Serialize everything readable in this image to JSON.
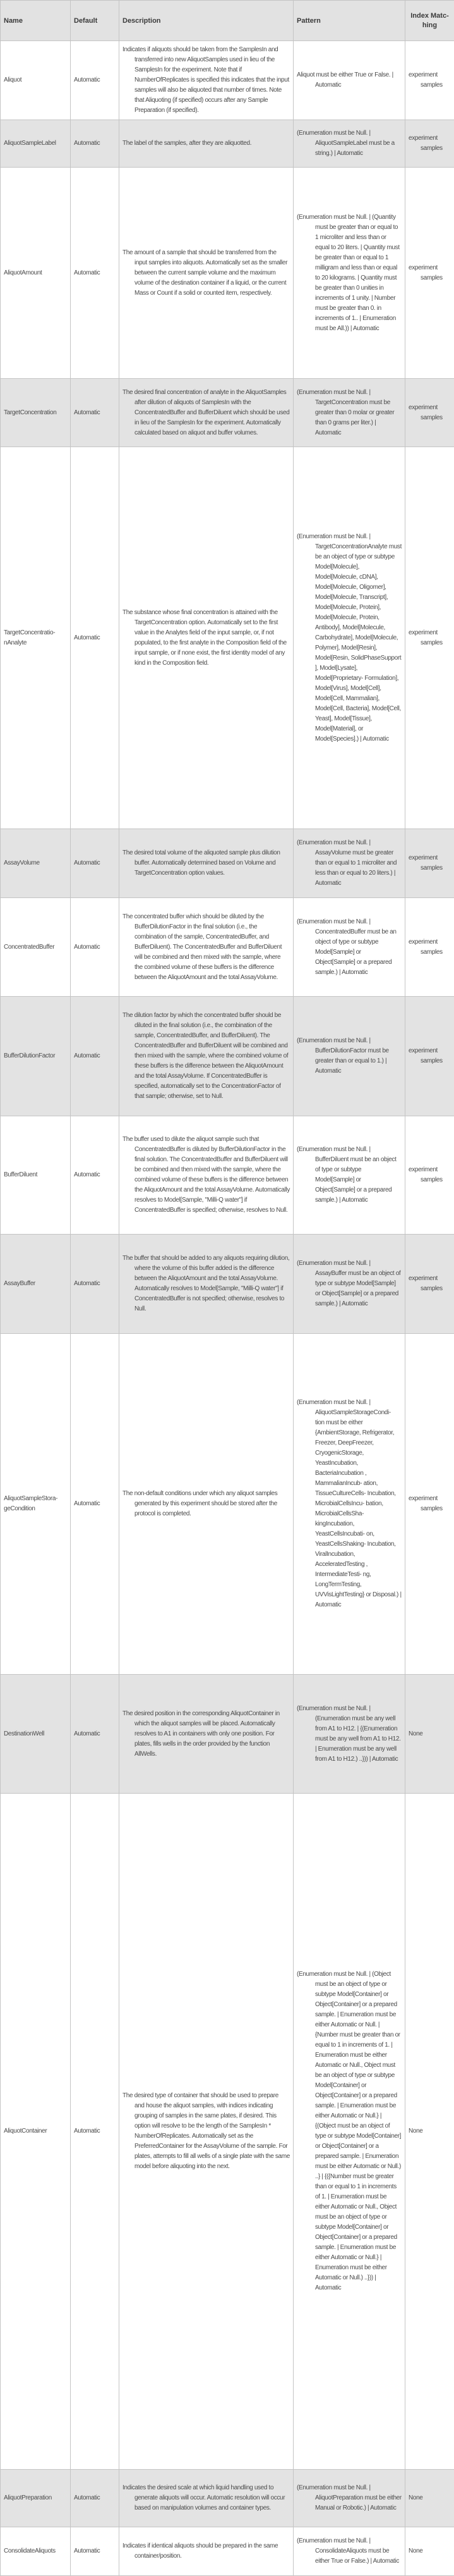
{
  "header": {
    "name": "Name",
    "default": "Default",
    "description": "Description",
    "pattern": "Pattern",
    "index_matching": "Index Matc- hing"
  },
  "colors": {
    "header_bg": "#e2e2e2",
    "alt_row_bg": "#e3e3e3",
    "border": "#c4c4c4",
    "text": "#4a4a4a"
  },
  "rows": [
    {
      "name": "Aliquot",
      "default": "Automatic",
      "description": "Indicates if aliquots should be taken from the SamplesIn and transferred into new AliquotSamples used in lieu of the SamplesIn for the experiment. Note that if NumberOfReplicates is specified this indicates that the input samples will also be aliquoted that number of times. Note that Aliquoting (if specified) occurs after any Sample Preparation (if specified).",
      "pattern": "Aliquot must be either True or False. | Automatic",
      "index": "experiment samples"
    },
    {
      "name": "AliquotSampleLabel",
      "default": "Automatic",
      "description": "The label of the samples, after they are aliquotted.",
      "pattern": "(Enumeration must be Null. | AliquotSampleLabel must be a string.) | Automatic",
      "index": "experiment samples"
    },
    {
      "name": "AliquotAmount",
      "default": "Automatic",
      "description": "The amount of a sample that should be transferred from the input samples into aliquots.  Automatically set as the smaller between the current sample volume and the maximum volume of the destination container if a liquid, or the current Mass or Count if a solid or counted item, respectively.",
      "pattern": "(Enumeration must be Null. | (Quantity must be greater than or equal to 1 microliter and less than or equal to 20 liters. | Quantity must be greater than or equal to 1 milligram and less than or equal to 20 kilograms. | Quantity must be greater than 0 unities in increments of 1 unity. | Number must be greater than 0. in increments of 1.. | Enumeration must be All.)) | Automatic",
      "index": "experiment samples"
    },
    {
      "name": "TargetConcentration",
      "default": "Automatic",
      "description": "The desired final concentration of analyte in the AliquotSamples after dilution of aliquots of SamplesIn with the ConcentratedBuffer and BufferDiluent which should be used in lieu of the SamplesIn for the experiment.  Automatically calculated based on aliquot and buffer volumes.",
      "pattern": "(Enumeration must be Null. | TargetConcentration must be greater than 0 molar or greater than 0 grams per liter.) | Automatic",
      "index": "experiment samples"
    },
    {
      "name": "TargetConcentratio- nAnalyte",
      "default": "Automatic",
      "description": "The substance whose final concentration is attained with the TargetConcentration option.  Automatically set to the first value in the Analytes field of the input sample, or, if not populated, to the first analyte in the Composition field of the input sample, or if none exist, the first identity model of any kind in the Composition field.",
      "pattern": "(Enumeration must be Null. | TargetConcentrationAnalyte must be an object of type or subtype Model[Molecule], Model[Molecule, cDNA], Model[Molecule, Oligomer], Model[Molecule, Transcript], Model[Molecule, Protein], Model[Molecule, Protein, Antibody], Model[Molecule, Carbohydrate], Model[Molecule, Polymer], Model[Resin], Model[Resin, SolidPhaseSupport ], Model[Lysate], Model[Proprietary- Formulation], Model[Virus], Model[Cell], Model[Cell, Mammalian], Model[Cell, Bacteria], Model[Cell, Yeast], Model[Tissue], Model[Material], or Model[Species].) | Automatic",
      "index": "experiment samples"
    },
    {
      "name": "AssayVolume",
      "default": "Automatic",
      "description": "The desired total volume of the aliquoted sample plus dilution buffer.  Automatically determined based on Volume and TargetConcentration option values.",
      "pattern": "(Enumeration must be Null. | AssayVolume must be greater than or equal to 1 microliter and less than or equal to 20 liters.) | Automatic",
      "index": "experiment samples"
    },
    {
      "name": "ConcentratedBuffer",
      "default": "Automatic",
      "description": "The concentrated buffer which should be diluted by the BufferDilutionFactor in the final solution (i.e., the combination of the sample, ConcentratedBuffer, and BufferDiluent). The ConcentratedBuffer and BufferDiluent will be combined and then mixed with the sample, where the combined volume of these buffers is the difference between the AliquotAmount and the total AssayVolume.",
      "pattern": "(Enumeration must be Null. | ConcentratedBuffer must be an object of type or subtype Model[Sample] or Object[Sample] or a prepared sample.) | Automatic",
      "index": "experiment samples"
    },
    {
      "name": "BufferDilutionFactor",
      "default": "Automatic",
      "description": "The dilution factor by which the concentrated buffer should be diluted in the final solution (i.e., the combination of the sample, ConcentratedBuffer, and BufferDiluent). The ConcentratedBuffer and BufferDiluent will be combined and then mixed with the sample, where the combined volume of these buffers is the difference between the AliquotAmount and the total AssayVolume.  If ConcentratedBuffer is specified, automatically set to the ConcentrationFactor of that sample; otherwise, set to Null.",
      "pattern": "(Enumeration must be Null. | BufferDilutionFactor must be greater than or equal to 1.) | Automatic",
      "index": "experiment samples"
    },
    {
      "name": "BufferDiluent",
      "default": "Automatic",
      "description": "The buffer used to dilute the aliquot sample such that ConcentratedBuffer is diluted by BufferDilutionFactor in the final solution. The ConcentratedBuffer and BufferDiluent will be combined and then mixed with the sample, where the combined volume of these buffers is the difference between the AliquotAmount and the total AssayVolume. Automatically resolves to Model[Sample, \"Milli-Q water\"] if ConcentratedBuffer is specified; otherwise, resolves to Null.",
      "pattern": "(Enumeration must be Null. | BufferDiluent must be an object of type or subtype Model[Sample] or Object[Sample] or a prepared sample.) | Automatic",
      "index": "experiment samples"
    },
    {
      "name": "AssayBuffer",
      "default": "Automatic",
      "description": "The buffer that should be added to any aliquots requiring dilution, where the volume of this buffer added is the difference between the AliquotAmount and the total AssayVolume. Automatically resolves to Model[Sample, \"Milli-Q water\"] if ConcentratedBuffer is not specified; otherwise, resolves to Null.",
      "pattern": "(Enumeration must be Null. | AssayBuffer must be an object of type or subtype Model[Sample] or Object[Sample] or a prepared sample.) | Automatic",
      "index": "experiment samples"
    },
    {
      "name": "AliquotSampleStora- geCondition",
      "default": "Automatic",
      "description": "The non-default conditions under which any aliquot samples generated by this experiment should be stored after the protocol is completed.",
      "pattern": "(Enumeration must be Null. | AliquotSampleStorageCondi- tion must be either {AmbientStorage, Refrigerator, Freezer, DeepFreezer, CryogenicStorage, YeastIncubation, BacteriaIncubation , MammalianIncub- ation, TissueCultureCells- Incubation, MicrobialCellsIncu- bation, MicrobialCellsSha- kingIncubation, YeastCellsIncubati- on, YeastCellsShaking- Incubation, ViralIncubation, AcceleratedTesting , IntermediateTesti- ng, LongTermTesting, UVVisLightTesting} or Disposal.) | Automatic",
      "index": "experiment samples"
    },
    {
      "name": "DestinationWell",
      "default": "Automatic",
      "description": "The desired position in the corresponding AliquotContainer in which the aliquot samples will be placed.  Automatically resolves to A1 in containers with only one position.  For plates, fills wells in the order provided by the function AllWells.",
      "pattern": "(Enumeration must be Null. | (Enumeration must be any well from A1 to H12. | {(Enumeration must be any well from A1 to H12. | Enumeration must be any well from A1 to H12.) ..})) | Automatic",
      "index": "None"
    },
    {
      "name": "AliquotContainer",
      "default": "Automatic",
      "description": "The desired type of container that should be used to prepare and house the aliquot samples, with indices indicating grouping of samples in the same plates, if desired.  This option will resolve to be the length of the SamplesIn * NumberOfReplicates. Automatically set as the PreferredContainer for the AssayVolume of the sample.  For plates, attempts to fill all wells of a single plate with the same model before aliquoting into the next.",
      "pattern": "(Enumeration must be Null. | (Object must be an object of type or subtype Model[Container] or Object[Container] or a prepared sample. | Enumeration must be either Automatic or Null. | {Number must be greater than or equal to 1 in increments of 1. | Enumeration must be either Automatic or Null., Object must be an object of type or subtype Model[Container] or Object[Container] or a prepared sample. | Enumeration must be either Automatic or Null.} | {(Object must be an object of type or subtype Model[Container] or Object[Container] or a prepared sample. | Enumeration must be either Automatic or Null.) ..} | {({Number must be greater than or equal to 1 in increments of 1. | Enumeration must be either Automatic or Null., Object must be an object of type or subtype Model[Container] or Object[Container] or a prepared sample. | Enumeration must be either Automatic or Null.} | Enumeration must be either Automatic or Null.) ..})) | Automatic",
      "index": "None"
    },
    {
      "name": "AliquotPreparation",
      "default": "Automatic",
      "description": "Indicates the desired scale at which liquid handling used to generate aliquots will occur. Automatic resolution will occur based on manipulation volumes and container types.",
      "pattern": "(Enumeration must be Null. | AliquotPreparation must be either Manual or Robotic.) | Automatic",
      "index": "None"
    },
    {
      "name": "ConsolidateAliquots",
      "default": "Automatic",
      "description": "Indicates if identical aliquots should be prepared in the same container/position.",
      "pattern": "(Enumeration must be Null. | ConsolidateAliquots must be either True or False.) | Automatic",
      "index": "None"
    }
  ]
}
